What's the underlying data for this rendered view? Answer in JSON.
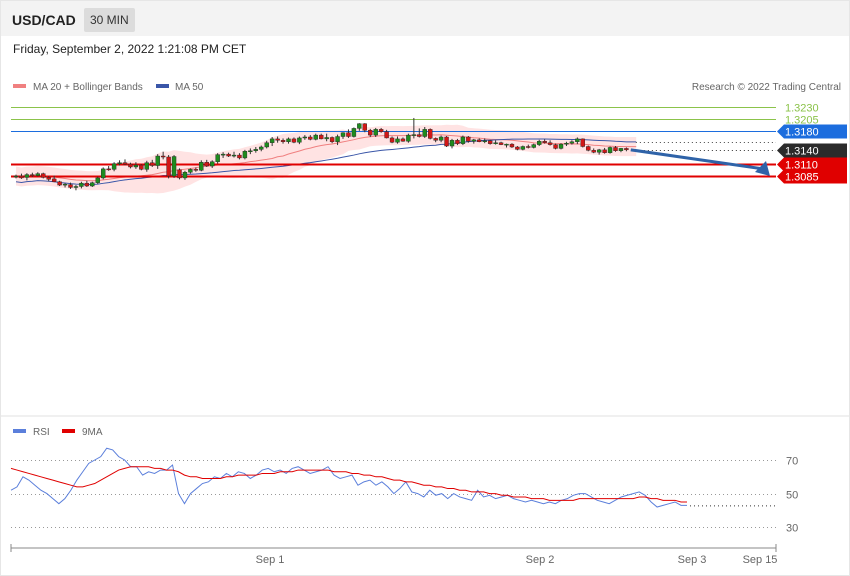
{
  "header": {
    "symbol": "USD/CAD",
    "timeframe": "30 MIN",
    "datetime": "Friday, September 2, 2022 1:21:08 PM CET"
  },
  "legend": {
    "ma20": "MA 20 + Bollinger Bands",
    "ma50": "MA 50",
    "credit": "Research © 2022 Trading Central",
    "rsi": "RSI",
    "rsi_ma": "9MA"
  },
  "colors": {
    "up": "#1e8c1e",
    "down": "#d11717",
    "ma20": "#f08080",
    "ma50": "#3a56a8",
    "band_fill": "#ffe3e3",
    "resistance": "#8bc34a",
    "pivot": "#1c6dde",
    "support": "#e00000",
    "arrow": "#2f63a8",
    "rsi": "#5b7fdb",
    "rsi_ma": "#e00000"
  },
  "chart_data": [
    {
      "type": "candlestick",
      "ylim": [
        1.304,
        1.325
      ],
      "x_labels": [
        "Sep 1",
        "Sep 2",
        "Sep 3",
        "Sep 15"
      ],
      "current_price": 1.314,
      "levels": [
        {
          "value": 1.323,
          "label": "1.3230",
          "kind": "resistance"
        },
        {
          "value": 1.3205,
          "label": "1.3205",
          "kind": "resistance"
        },
        {
          "value": 1.318,
          "label": "1.3180",
          "kind": "pivot"
        },
        {
          "value": 1.314,
          "label": "1.3140",
          "kind": "current"
        },
        {
          "value": 1.311,
          "label": "1.3110",
          "kind": "support"
        },
        {
          "value": 1.3085,
          "label": "1.3085",
          "kind": "support"
        }
      ],
      "forecast_arrow": {
        "from": 1.314,
        "to": 1.3085
      },
      "ohlc": [
        [
          1.3083,
          1.3088,
          1.308,
          1.3085
        ],
        [
          1.3085,
          1.309,
          1.3079,
          1.3081
        ],
        [
          1.3082,
          1.3091,
          1.3076,
          1.3088
        ],
        [
          1.3088,
          1.3092,
          1.3083,
          1.3086
        ],
        [
          1.3086,
          1.3093,
          1.3084,
          1.309
        ],
        [
          1.309,
          1.3092,
          1.308,
          1.3082
        ],
        [
          1.3082,
          1.3085,
          1.3074,
          1.3078
        ],
        [
          1.3079,
          1.3086,
          1.3072,
          1.3073
        ],
        [
          1.3073,
          1.3075,
          1.3064,
          1.3066
        ],
        [
          1.3066,
          1.307,
          1.3061,
          1.3068
        ],
        [
          1.3067,
          1.3071,
          1.3058,
          1.3061
        ],
        [
          1.3061,
          1.3066,
          1.3055,
          1.3063
        ],
        [
          1.3063,
          1.3073,
          1.3059,
          1.307
        ],
        [
          1.307,
          1.3075,
          1.3062,
          1.3064
        ],
        [
          1.3064,
          1.3073,
          1.3062,
          1.3071
        ],
        [
          1.3071,
          1.3084,
          1.3068,
          1.3081
        ],
        [
          1.3081,
          1.3103,
          1.3078,
          1.31
        ],
        [
          1.31,
          1.3106,
          1.3096,
          1.3099
        ],
        [
          1.3099,
          1.3114,
          1.3095,
          1.3111
        ],
        [
          1.3111,
          1.3118,
          1.3107,
          1.3113
        ],
        [
          1.3113,
          1.312,
          1.3108,
          1.311
        ],
        [
          1.311,
          1.3113,
          1.3101,
          1.3104
        ],
        [
          1.3104,
          1.3114,
          1.31,
          1.3108
        ],
        [
          1.3108,
          1.311,
          1.3097,
          1.3099
        ],
        [
          1.3099,
          1.3117,
          1.3094,
          1.3113
        ],
        [
          1.3113,
          1.3119,
          1.3104,
          1.3107
        ],
        [
          1.3107,
          1.3131,
          1.31,
          1.3127
        ],
        [
          1.3127,
          1.3136,
          1.312,
          1.3125
        ],
        [
          1.3125,
          1.3129,
          1.308,
          1.3085
        ],
        [
          1.3085,
          1.3129,
          1.3081,
          1.3126
        ],
        [
          1.3098,
          1.3101,
          1.3078,
          1.3081
        ],
        [
          1.3081,
          1.3096,
          1.3077,
          1.3093
        ],
        [
          1.3093,
          1.3101,
          1.309,
          1.3099
        ],
        [
          1.3099,
          1.3103,
          1.3094,
          1.3097
        ],
        [
          1.3097,
          1.3118,
          1.3095,
          1.3114
        ],
        [
          1.3114,
          1.3119,
          1.3104,
          1.3106
        ],
        [
          1.3106,
          1.3118,
          1.3102,
          1.3115
        ],
        [
          1.3115,
          1.3133,
          1.3111,
          1.313
        ],
        [
          1.313,
          1.3135,
          1.3123,
          1.3131
        ],
        [
          1.3131,
          1.3134,
          1.3125,
          1.3127
        ],
        [
          1.3127,
          1.3136,
          1.3124,
          1.3129
        ],
        [
          1.3129,
          1.3133,
          1.312,
          1.3123
        ],
        [
          1.3123,
          1.314,
          1.312,
          1.3137
        ],
        [
          1.3137,
          1.3143,
          1.3131,
          1.3138
        ],
        [
          1.3138,
          1.3146,
          1.3134,
          1.3141
        ],
        [
          1.3141,
          1.3149,
          1.3137,
          1.3146
        ],
        [
          1.3146,
          1.3159,
          1.3143,
          1.3155
        ],
        [
          1.3155,
          1.3167,
          1.3148,
          1.3163
        ],
        [
          1.3163,
          1.3168,
          1.3155,
          1.316
        ],
        [
          1.316,
          1.3164,
          1.3153,
          1.3157
        ],
        [
          1.3157,
          1.3166,
          1.3153,
          1.3163
        ],
        [
          1.3163,
          1.3166,
          1.3154,
          1.3156
        ],
        [
          1.3156,
          1.3168,
          1.3152,
          1.3165
        ],
        [
          1.3165,
          1.3171,
          1.3161,
          1.3167
        ],
        [
          1.3167,
          1.3171,
          1.316,
          1.3162
        ],
        [
          1.3162,
          1.3174,
          1.316,
          1.3171
        ],
        [
          1.3171,
          1.3174,
          1.3162,
          1.3163
        ],
        [
          1.3163,
          1.3174,
          1.3158,
          1.3166
        ],
        [
          1.3166,
          1.3168,
          1.3154,
          1.3157
        ],
        [
          1.3157,
          1.3172,
          1.315,
          1.3168
        ],
        [
          1.3168,
          1.3177,
          1.3163,
          1.3176
        ],
        [
          1.3176,
          1.3183,
          1.3165,
          1.3168
        ],
        [
          1.3168,
          1.3187,
          1.3166,
          1.3185
        ],
        [
          1.3185,
          1.3196,
          1.318,
          1.3195
        ],
        [
          1.3195,
          1.3196,
          1.3177,
          1.3181
        ],
        [
          1.3181,
          1.3184,
          1.3167,
          1.3171
        ],
        [
          1.3171,
          1.3186,
          1.3167,
          1.3183
        ],
        [
          1.3183,
          1.3186,
          1.3176,
          1.3178
        ],
        [
          1.3178,
          1.3182,
          1.3164,
          1.3165
        ],
        [
          1.3165,
          1.3168,
          1.3154,
          1.3156
        ],
        [
          1.3156,
          1.3168,
          1.3153,
          1.3163
        ],
        [
          1.3163,
          1.3166,
          1.3157,
          1.3158
        ],
        [
          1.3158,
          1.3174,
          1.3155,
          1.3171
        ],
        [
          1.3171,
          1.3207,
          1.3164,
          1.3172
        ],
        [
          1.3172,
          1.3185,
          1.3166,
          1.3168
        ],
        [
          1.3168,
          1.3188,
          1.3165,
          1.3183
        ],
        [
          1.3183,
          1.3185,
          1.3162,
          1.3164
        ],
        [
          1.3164,
          1.3166,
          1.3156,
          1.316
        ],
        [
          1.316,
          1.317,
          1.3156,
          1.3167
        ],
        [
          1.3167,
          1.3169,
          1.3146,
          1.3148
        ],
        [
          1.3148,
          1.3163,
          1.3143,
          1.316
        ],
        [
          1.316,
          1.3163,
          1.315,
          1.3153
        ],
        [
          1.3153,
          1.317,
          1.315,
          1.3167
        ],
        [
          1.3167,
          1.3169,
          1.3155,
          1.3158
        ],
        [
          1.3158,
          1.3163,
          1.3153,
          1.3161
        ],
        [
          1.3161,
          1.3164,
          1.3156,
          1.3157
        ],
        [
          1.3157,
          1.3164,
          1.3154,
          1.3159
        ],
        [
          1.3159,
          1.3161,
          1.3151,
          1.3153
        ],
        [
          1.3153,
          1.316,
          1.3151,
          1.3155
        ],
        [
          1.3155,
          1.3157,
          1.315,
          1.3151
        ],
        [
          1.3151,
          1.3153,
          1.3145,
          1.3152
        ],
        [
          1.3152,
          1.3154,
          1.3144,
          1.3146
        ],
        [
          1.3146,
          1.3148,
          1.3139,
          1.3141
        ],
        [
          1.3141,
          1.3149,
          1.3139,
          1.3147
        ],
        [
          1.3147,
          1.3151,
          1.3143,
          1.3145
        ],
        [
          1.3145,
          1.3153,
          1.3143,
          1.3151
        ],
        [
          1.3151,
          1.3161,
          1.3148,
          1.3158
        ],
        [
          1.3158,
          1.3162,
          1.3153,
          1.3155
        ],
        [
          1.3155,
          1.316,
          1.3149,
          1.3151
        ],
        [
          1.3151,
          1.3153,
          1.3141,
          1.3143
        ],
        [
          1.3143,
          1.3154,
          1.3141,
          1.3152
        ],
        [
          1.3152,
          1.3157,
          1.3148,
          1.3154
        ],
        [
          1.3154,
          1.316,
          1.3151,
          1.3157
        ],
        [
          1.3157,
          1.3166,
          1.3152,
          1.3163
        ],
        [
          1.3163,
          1.3164,
          1.3145,
          1.3147
        ],
        [
          1.3147,
          1.3149,
          1.3137,
          1.3139
        ],
        [
          1.3139,
          1.3143,
          1.3133,
          1.3135
        ],
        [
          1.3135,
          1.3142,
          1.313,
          1.314
        ],
        [
          1.314,
          1.3144,
          1.3132,
          1.3134
        ],
        [
          1.3134,
          1.3147,
          1.3132,
          1.3145
        ],
        [
          1.3145,
          1.3148,
          1.3136,
          1.3138
        ],
        [
          1.3138,
          1.3144,
          1.3135,
          1.3143
        ],
        [
          1.3143,
          1.3145,
          1.3137,
          1.314
        ]
      ]
    },
    {
      "type": "line",
      "name": "RSI",
      "ylim": [
        20,
        80
      ],
      "y_ticks": [
        70,
        50,
        30
      ],
      "series": [
        {
          "name": "RSI",
          "values": [
            52,
            54,
            60,
            58,
            55,
            52,
            50,
            47,
            44,
            47,
            52,
            58,
            63,
            68,
            70,
            72,
            77,
            76,
            72,
            70,
            66,
            66,
            61,
            63,
            62,
            64,
            64,
            67,
            50,
            44,
            50,
            53,
            56,
            57,
            60,
            59,
            62,
            60,
            63,
            62,
            59,
            61,
            64,
            65,
            63,
            64,
            62,
            65,
            66,
            64,
            62,
            63,
            64,
            66,
            61,
            59,
            60,
            61,
            55,
            57,
            58,
            55,
            57,
            54,
            50,
            53,
            57,
            51,
            50,
            48,
            52,
            49,
            50,
            47,
            50,
            48,
            47,
            46,
            52,
            48,
            49,
            47,
            48,
            49,
            47,
            46,
            45,
            46,
            45,
            44,
            45,
            44,
            46,
            47,
            49,
            50,
            50,
            48,
            46,
            45,
            44,
            46,
            48,
            49,
            50,
            51,
            49,
            45,
            42,
            43,
            44,
            45,
            43,
            43
          ]
        },
        {
          "name": "9MA",
          "values": [
            65,
            64,
            63,
            62,
            61,
            60,
            59,
            58,
            57,
            56,
            55,
            54,
            54,
            55,
            56,
            58,
            60,
            62,
            64,
            65,
            66,
            66,
            66,
            66,
            65,
            65,
            64,
            64,
            63,
            61,
            60,
            60,
            59,
            59,
            59,
            59,
            60,
            60,
            61,
            61,
            61,
            61,
            62,
            62,
            62,
            63,
            63,
            63,
            64,
            64,
            64,
            64,
            64,
            64,
            63,
            63,
            63,
            62,
            62,
            61,
            61,
            60,
            60,
            59,
            58,
            58,
            57,
            57,
            56,
            55,
            55,
            54,
            54,
            53,
            53,
            52,
            52,
            51,
            51,
            51,
            50,
            50,
            49,
            49,
            48,
            48,
            48,
            47,
            47,
            47,
            46,
            46,
            46,
            46,
            46,
            47,
            47,
            47,
            47,
            47,
            47,
            47,
            47,
            47,
            47,
            48,
            48,
            47,
            47,
            46,
            46,
            46,
            45,
            45
          ]
        }
      ]
    }
  ]
}
